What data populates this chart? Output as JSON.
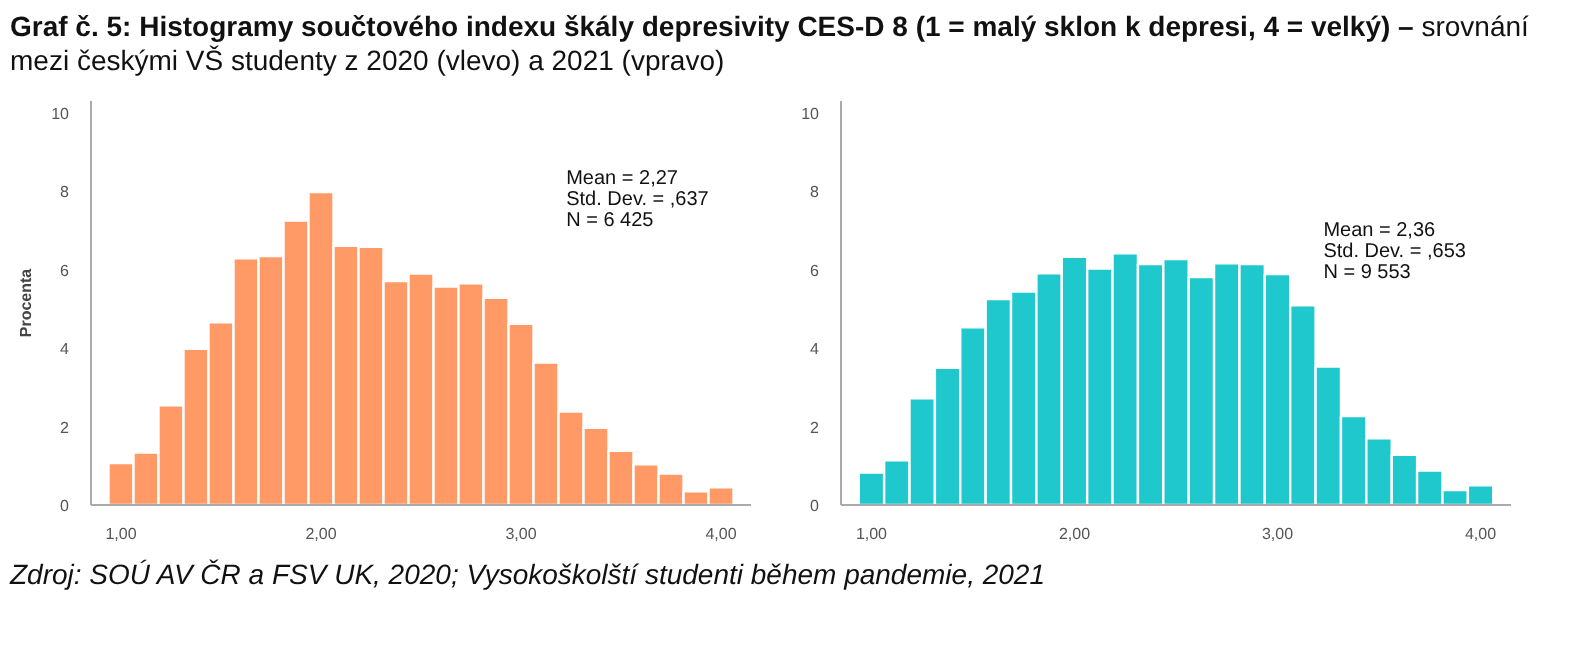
{
  "chart_data": [
    {
      "type": "histogram",
      "title": "Graf č. 5: Histogramy součtového indexu škály depresivity CES-D 8 (1 = malý sklon k depresi, 4 = velký) –",
      "subtitle": "srovnání mezi českými VŠ studenty z 2020 (vlevo) a 2021 (vpravo)",
      "ylabel": "Procenta",
      "bins": [
        0.9375,
        1.0625,
        1.1875,
        1.3125,
        1.4375,
        1.5625,
        1.6875,
        1.8125,
        1.9375,
        2.0625,
        2.1875,
        2.3125,
        2.4375,
        2.5625,
        2.6875,
        2.8125,
        2.9375,
        3.0625,
        3.1875,
        3.3125,
        3.4375,
        3.5625,
        3.6875,
        3.8125,
        3.9375,
        4.0625
      ],
      "values": [
        1.07,
        1.34,
        2.54,
        3.98,
        4.66,
        6.29,
        6.35,
        7.25,
        7.98,
        6.61,
        6.58,
        5.71,
        5.9,
        5.57,
        5.65,
        5.28,
        4.62,
        3.63,
        2.38,
        1.97,
        1.38,
        1.04,
        0.8,
        0.35,
        0.45
      ],
      "color": "#ff9966",
      "xlim": [
        0.85,
        4.15
      ],
      "ylim": [
        0,
        10.3
      ],
      "xticks": [
        {
          "value": 1,
          "label": "1,00"
        },
        {
          "value": 2,
          "label": "2,00"
        },
        {
          "value": 3,
          "label": "3,00"
        },
        {
          "value": 4,
          "label": "4,00"
        }
      ],
      "yticks": [
        0,
        2,
        4,
        6,
        8,
        10
      ],
      "annotations": [
        "Mean = 2,27",
        "Std. Dev. = ,637",
        "N = 6 425",
        "Zdroj: SOÚ AV ČR a FSV UK, 2020; Vysokoškolští studenti během pandemie, 2021"
      ]
    },
    {
      "type": "histogram",
      "bins": [
        0.9375,
        1.0625,
        1.1875,
        1.3125,
        1.4375,
        1.5625,
        1.6875,
        1.8125,
        1.9375,
        2.0625,
        2.1875,
        2.3125,
        2.4375,
        2.5625,
        2.6875,
        2.8125,
        2.9375,
        3.0625,
        3.1875,
        3.3125,
        3.4375,
        3.5625,
        3.6875,
        3.8125,
        3.9375,
        4.0625
      ],
      "values": [
        0.83,
        1.14,
        2.72,
        3.5,
        4.53,
        5.25,
        5.44,
        5.91,
        6.33,
        6.03,
        6.42,
        6.14,
        6.27,
        5.81,
        6.16,
        6.14,
        5.89,
        5.09,
        3.53,
        2.27,
        1.7,
        1.28,
        0.88,
        0.38,
        0.5
      ],
      "color": "#1fc8cc",
      "xlim": [
        0.85,
        4.15
      ],
      "ylim": [
        0,
        10.3
      ],
      "xticks": [
        {
          "value": 1,
          "label": "1,00"
        },
        {
          "value": 2,
          "label": "2,00"
        },
        {
          "value": 3,
          "label": "3,00"
        },
        {
          "value": 4,
          "label": "4,00"
        }
      ],
      "yticks": [
        0,
        2,
        4,
        6,
        8,
        10
      ],
      "annotations": [
        "Mean = 2,36",
        "Std. Dev. = ,653",
        "N = 9 553"
      ]
    }
  ]
}
